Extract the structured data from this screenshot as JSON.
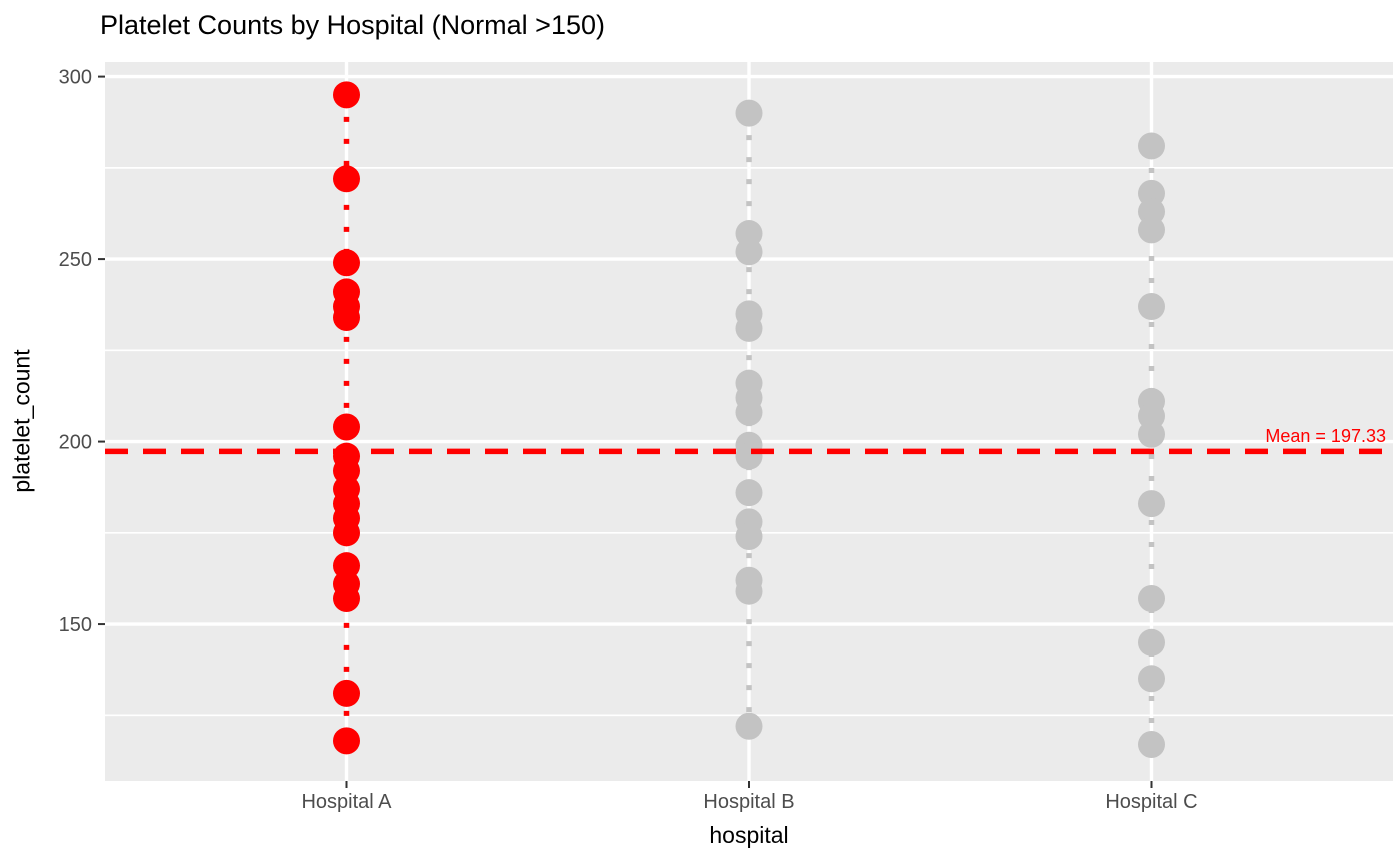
{
  "chart_data": {
    "type": "scatter",
    "title": "Platelet Counts by Hospital (Normal >150)",
    "xlabel": "hospital",
    "ylabel": "platelet_count",
    "categories": [
      "Hospital A",
      "Hospital B",
      "Hospital C"
    ],
    "series": [
      {
        "name": "Hospital A",
        "color": "#ff0000",
        "values": [
          295,
          272,
          249,
          241,
          237,
          234,
          204,
          196,
          192,
          187,
          183,
          179,
          175,
          166,
          161,
          157,
          131,
          118
        ]
      },
      {
        "name": "Hospital B",
        "color": "#c3c3c3",
        "values": [
          290,
          257,
          252,
          235,
          231,
          216,
          212,
          208,
          199,
          196,
          186,
          178,
          174,
          162,
          159,
          122
        ]
      },
      {
        "name": "Hospital C",
        "color": "#c3c3c3",
        "values": [
          281,
          268,
          263,
          258,
          237,
          211,
          207,
          202,
          183,
          157,
          145,
          135,
          117
        ]
      }
    ],
    "yticks": [
      150,
      200,
      250,
      300
    ],
    "yticks_minor": [
      125,
      175,
      225,
      275
    ],
    "ylim": [
      107,
      304
    ],
    "mean_line": {
      "value": 197.33,
      "label": "Mean = 197.33",
      "color": "#ff0000",
      "linetype": "dashed"
    },
    "stem_linetype": "dotted",
    "normal_threshold": 150,
    "grid": true,
    "legend_position": "none",
    "panel_bg": "#ebebeb",
    "grid_color": "#ffffff",
    "tick_label_color": "#4d4d4d",
    "tick_mark_color": "#333333"
  }
}
